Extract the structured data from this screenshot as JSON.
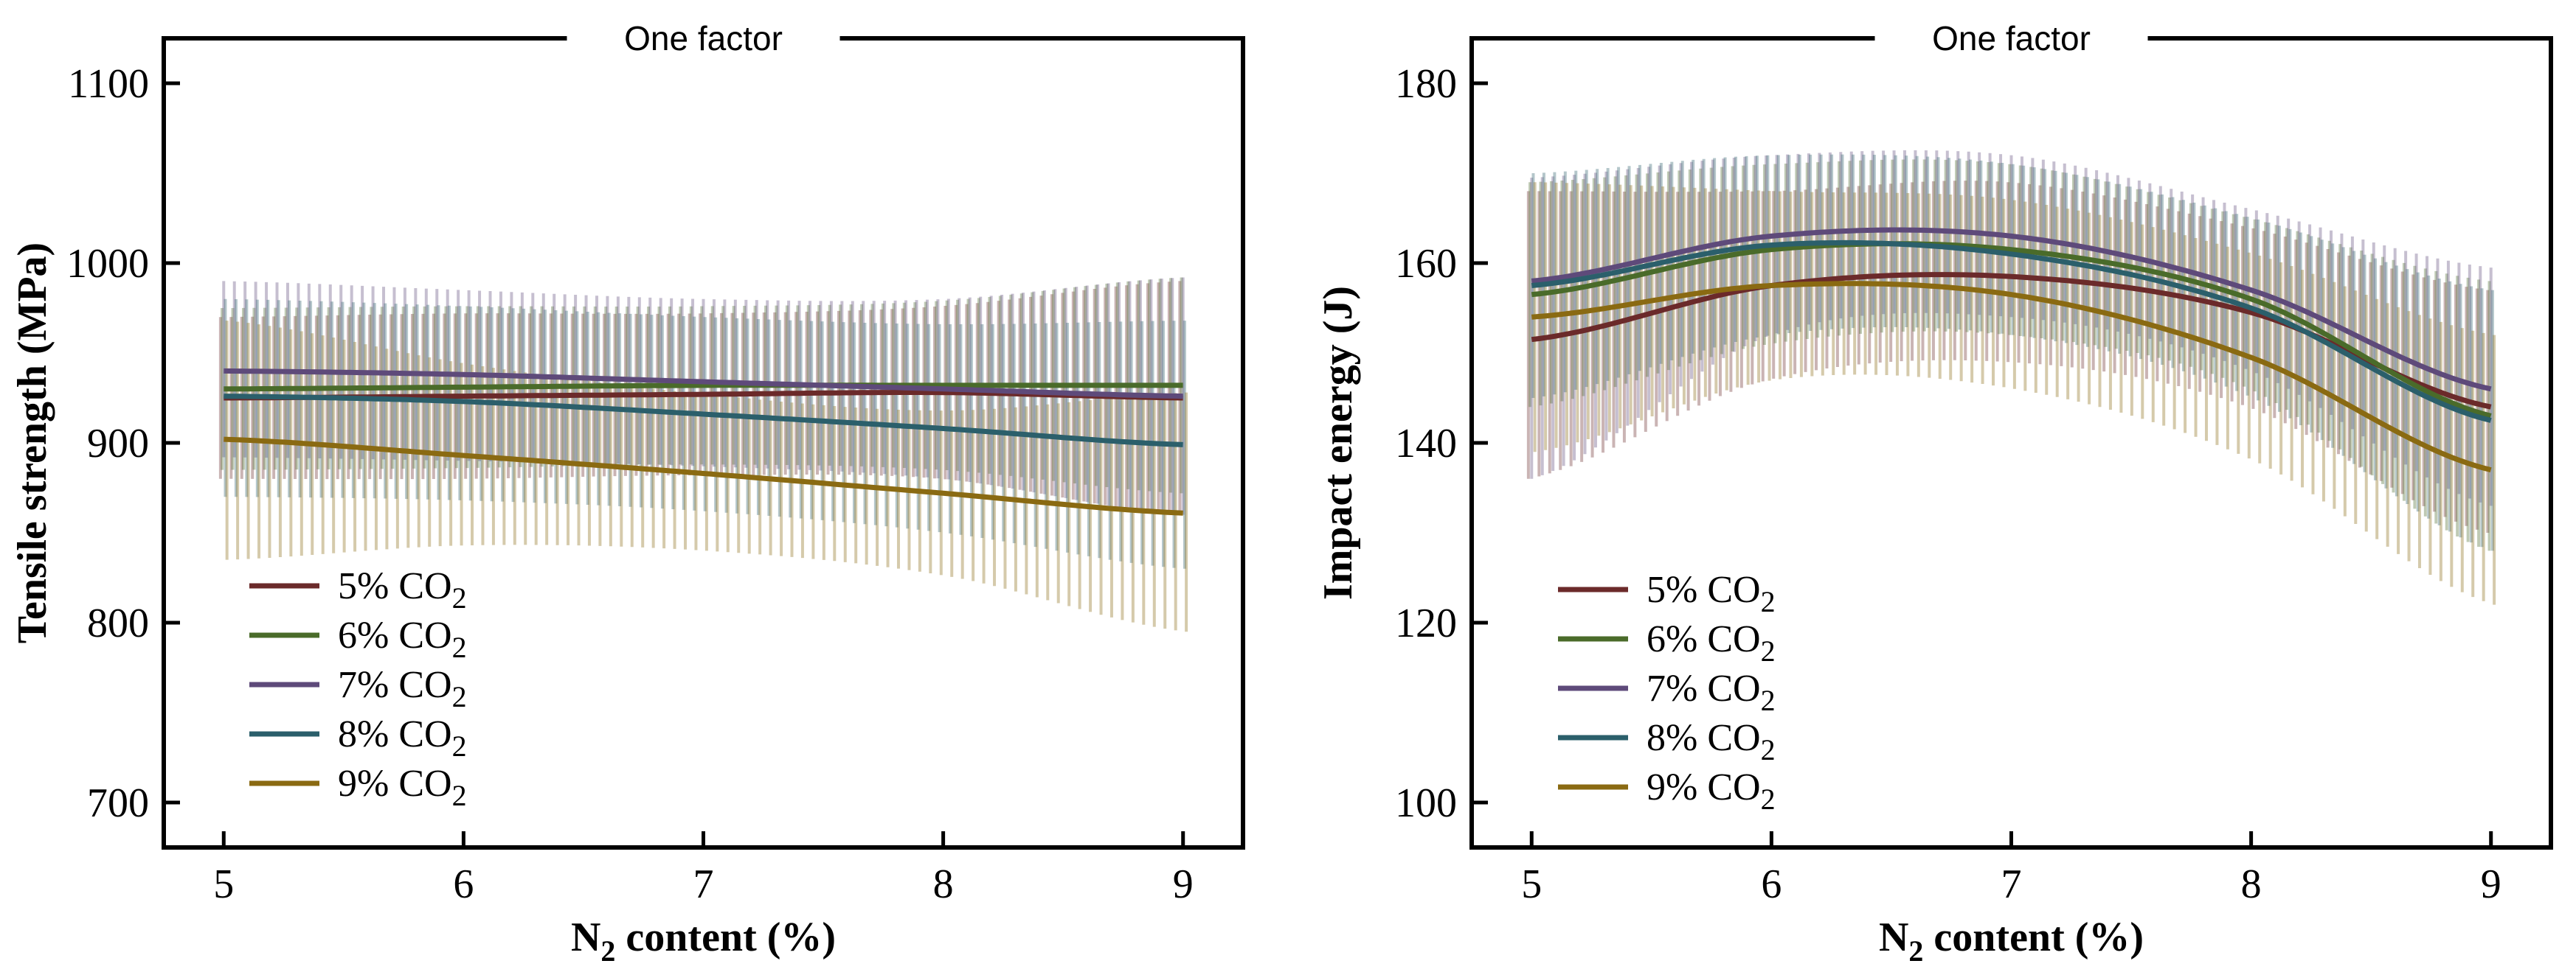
{
  "chart_data": [
    {
      "type": "line",
      "title": "One factor",
      "xlabel": "N2 content (%)",
      "xlabel_parts": {
        "base": "N",
        "sub": "2",
        "rest": " content (%)"
      },
      "ylabel": "Tensile strength (MPa)",
      "xlim": [
        4.75,
        9.25
      ],
      "ylim": [
        675,
        1125
      ],
      "xticks": [
        5,
        6,
        7,
        8,
        9
      ],
      "xtick_labels": [
        "5",
        "6",
        "7",
        "8",
        "9"
      ],
      "yticks": [
        700,
        800,
        900,
        1000,
        1100
      ],
      "ytick_labels": [
        "700",
        "800",
        "900",
        "1000",
        "1100"
      ],
      "legend_position": "bottom-left",
      "confidence_bands": true,
      "series": [
        {
          "name": "5% CO2",
          "label": "5% CO",
          "sub": "2",
          "color": "#6b2a2a",
          "x": [
            5,
            6,
            7,
            8,
            9
          ],
          "values": [
            925,
            926,
            927,
            928,
            925
          ],
          "lower": [
            880,
            880,
            882,
            880,
            860
          ],
          "upper": [
            970,
            972,
            972,
            976,
            990
          ]
        },
        {
          "name": "6% CO2",
          "label": "6% CO",
          "sub": "2",
          "color": "#4a6b2a",
          "x": [
            5,
            6,
            7,
            8,
            9
          ],
          "values": [
            930,
            931,
            932,
            932,
            932
          ],
          "lower": [
            885,
            886,
            888,
            885,
            872
          ],
          "upper": [
            975,
            976,
            976,
            979,
            992
          ]
        },
        {
          "name": "7% CO2",
          "label": "7% CO",
          "sub": "2",
          "color": "#5e4a7a",
          "x": [
            5,
            6,
            7,
            8,
            9
          ],
          "values": [
            940,
            938,
            934,
            930,
            926
          ],
          "lower": [
            892,
            890,
            887,
            880,
            860
          ],
          "upper": [
            990,
            985,
            980,
            980,
            992
          ]
        },
        {
          "name": "8% CO2",
          "label": "8% CO",
          "sub": "2",
          "color": "#2b5f6b",
          "x": [
            5,
            6,
            7,
            8,
            9
          ],
          "values": [
            926,
            923,
            916,
            908,
            899
          ],
          "lower": [
            870,
            868,
            862,
            850,
            830
          ],
          "upper": [
            980,
            976,
            970,
            966,
            968
          ]
        },
        {
          "name": "9% CO2",
          "label": "9% CO",
          "sub": "2",
          "color": "#8a6a12",
          "x": [
            5,
            6,
            7,
            8,
            9
          ],
          "values": [
            902,
            893,
            883,
            872,
            861
          ],
          "lower": [
            835,
            843,
            840,
            826,
            795
          ],
          "upper": [
            968,
            944,
            927,
            918,
            928
          ]
        }
      ]
    },
    {
      "type": "line",
      "title": "One factor",
      "xlabel": "N2 content (%)",
      "xlabel_parts": {
        "base": "N",
        "sub": "2",
        "rest": " content (%)"
      },
      "ylabel": "Impact energy (J)",
      "xlim": [
        4.75,
        9.25
      ],
      "ylim": [
        95,
        185
      ],
      "xticks": [
        5,
        6,
        7,
        8,
        9
      ],
      "xtick_labels": [
        "5",
        "6",
        "7",
        "8",
        "9"
      ],
      "yticks": [
        100,
        120,
        140,
        160,
        180
      ],
      "ytick_labels": [
        "100",
        "120",
        "140",
        "160",
        "180"
      ],
      "legend_position": "bottom-left",
      "confidence_bands": true,
      "series": [
        {
          "name": "5% CO2",
          "label": "5% CO",
          "sub": "2",
          "color": "#6b2a2a",
          "x": [
            5,
            6,
            7,
            8,
            9
          ],
          "values": [
            151.5,
            157.5,
            158.5,
            154.5,
            144
          ],
          "lower": [
            136,
            147,
            149,
            144,
            130
          ],
          "upper": [
            168,
            168,
            169,
            164,
            157
          ]
        },
        {
          "name": "6% CO2",
          "label": "6% CO",
          "sub": "2",
          "color": "#4a6b2a",
          "x": [
            5,
            6,
            7,
            8,
            9
          ],
          "values": [
            156.5,
            161.5,
            161.5,
            156,
            143
          ],
          "lower": [
            144,
            151,
            152,
            146,
            128
          ],
          "upper": [
            169,
            171,
            171,
            165,
            158
          ]
        },
        {
          "name": "7% CO2",
          "label": "7% CO",
          "sub": "2",
          "color": "#5e4a7a",
          "x": [
            5,
            6,
            7,
            8,
            9
          ],
          "values": [
            158,
            163,
            163,
            157,
            146
          ],
          "lower": [
            136,
            152,
            154,
            148,
            133
          ],
          "upper": [
            169.5,
            172,
            172,
            166,
            159.5
          ]
        },
        {
          "name": "8% CO2",
          "label": "8% CO",
          "sub": "2",
          "color": "#2b5f6b",
          "x": [
            5,
            6,
            7,
            8,
            9
          ],
          "values": [
            157.5,
            162,
            161,
            155,
            142.5
          ],
          "lower": [
            145,
            152,
            152,
            145,
            128
          ],
          "upper": [
            170,
            172,
            171,
            165,
            157
          ]
        },
        {
          "name": "9% CO2",
          "label": "9% CO",
          "sub": "2",
          "color": "#8a6a12",
          "x": [
            5,
            6,
            7,
            8,
            9
          ],
          "values": [
            154,
            157.5,
            156.5,
            149.5,
            137
          ],
          "lower": [
            139,
            147,
            146,
            138,
            122
          ],
          "upper": [
            169,
            168,
            167,
            161,
            152
          ]
        }
      ]
    }
  ]
}
